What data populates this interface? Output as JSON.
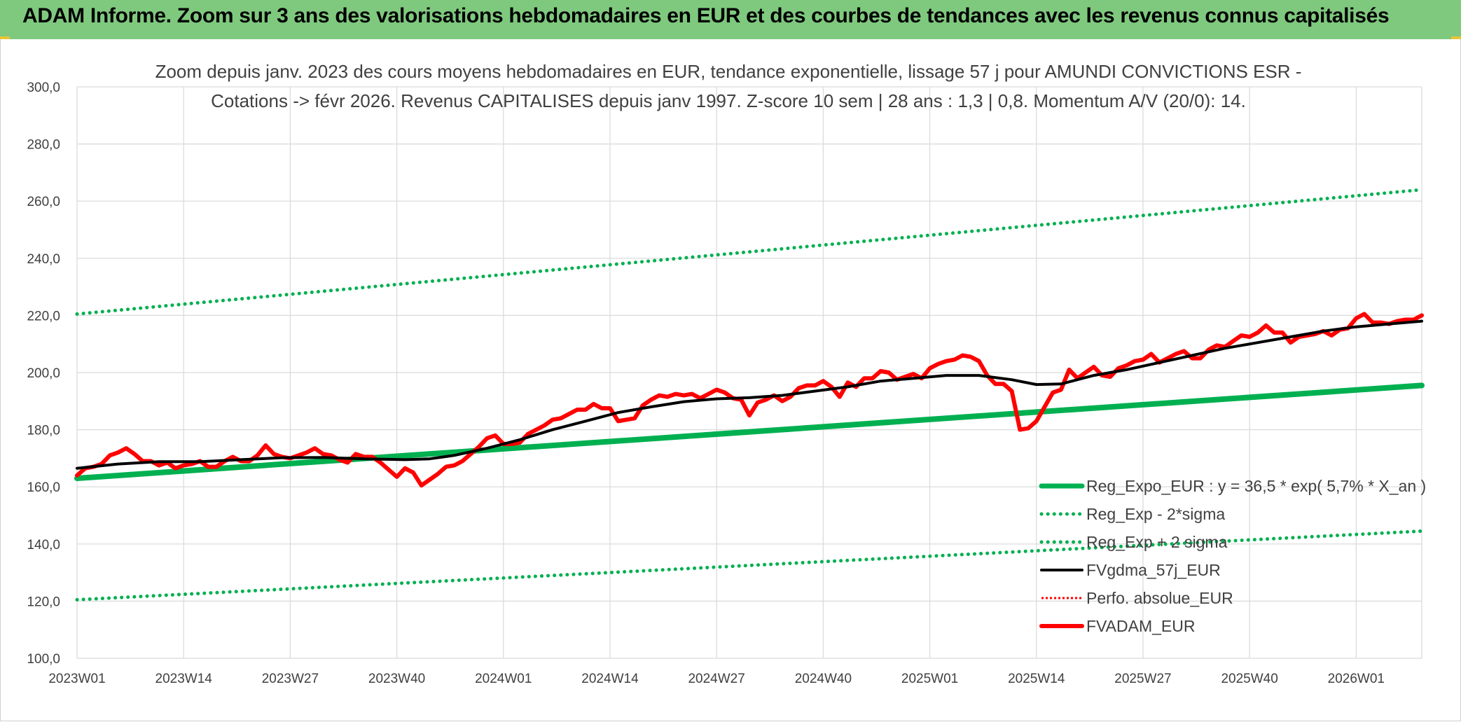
{
  "header": {
    "title": "ADAM Informe. Zoom sur 3 ans des valorisations hebdomadaires en EUR et des courbes de tendances avec les revenus connus capitalisés"
  },
  "chart_data": {
    "type": "line",
    "title_line1": "Zoom depuis janv. 2023 des cours moyens hebdomadaires en EUR, tendance exponentielle, lissage 57 j pour AMUNDI CONVICTIONS ESR -",
    "title_line2": "Cotations -> févr 2026. Revenus CAPITALISES depuis janv 1997. Z-score 10 sem | 28 ans : 1,3 | 0,8. Momentum A/V (20/0): 14.",
    "xlabel": "",
    "ylabel": "",
    "ylim": [
      100,
      300
    ],
    "yticks": [
      "100,0",
      "120,0",
      "140,0",
      "160,0",
      "180,0",
      "200,0",
      "220,0",
      "240,0",
      "260,0",
      "280,0",
      "300,0"
    ],
    "x_tick_labels": [
      "2023W01",
      "2023W14",
      "2023W27",
      "2023W40",
      "2024W01",
      "2024W14",
      "2024W27",
      "2024W40",
      "2025W01",
      "2025W14",
      "2025W27",
      "2025W40",
      "2026W01"
    ],
    "x_tick_weeks": [
      0,
      13,
      26,
      39,
      52,
      65,
      78,
      91,
      104,
      117,
      130,
      143,
      156
    ],
    "week_count": 164,
    "grid": true,
    "legend_position": "bottom-right",
    "colors": {
      "reg_expo": "#00b050",
      "reg_band": "#00b050",
      "fvgdma": "#000000",
      "perfo": "#ff0000",
      "fvadam": "#ff0000"
    },
    "series": [
      {
        "name": "Reg_Expo_EUR : y = 36,5 * exp( 5,7% *  X_an )",
        "key": "reg_expo",
        "style": "thick",
        "points": [
          [
            0,
            163
          ],
          [
            164,
            195.5
          ]
        ]
      },
      {
        "name": "Reg_Exp - 2*sigma",
        "key": "reg_lower",
        "style": "dotted",
        "points": [
          [
            0,
            120.5
          ],
          [
            164,
            144.5
          ]
        ]
      },
      {
        "name": "Reg_Exp + 2 sigma",
        "key": "reg_upper",
        "style": "dotted",
        "points": [
          [
            0,
            220.5
          ],
          [
            164,
            264
          ]
        ]
      },
      {
        "name": "FVgdma_57j_EUR",
        "key": "fvgdma",
        "style": "solid",
        "points": [
          [
            0,
            166.5
          ],
          [
            5,
            168
          ],
          [
            10,
            168.8
          ],
          [
            15,
            168.8
          ],
          [
            20,
            169.5
          ],
          [
            25,
            170.2
          ],
          [
            30,
            170.3
          ],
          [
            35,
            169.8
          ],
          [
            40,
            169.5
          ],
          [
            43,
            169.8
          ],
          [
            46,
            171
          ],
          [
            50,
            173.5
          ],
          [
            54,
            176.5
          ],
          [
            58,
            180
          ],
          [
            62,
            183
          ],
          [
            66,
            186
          ],
          [
            70,
            188
          ],
          [
            74,
            189.8
          ],
          [
            78,
            190.8
          ],
          [
            82,
            191.2
          ],
          [
            86,
            192
          ],
          [
            90,
            193.5
          ],
          [
            94,
            195
          ],
          [
            98,
            197
          ],
          [
            102,
            198
          ],
          [
            106,
            199
          ],
          [
            110,
            199
          ],
          [
            114,
            197.5
          ],
          [
            117,
            195.8
          ],
          [
            120,
            196
          ],
          [
            124,
            199
          ],
          [
            128,
            201
          ],
          [
            132,
            203.5
          ],
          [
            136,
            206
          ],
          [
            140,
            208.5
          ],
          [
            144,
            210.5
          ],
          [
            148,
            212.5
          ],
          [
            152,
            214.5
          ],
          [
            156,
            216
          ],
          [
            160,
            217
          ],
          [
            164,
            218
          ]
        ]
      },
      {
        "name": "Perfo. absolue_EUR",
        "key": "perfo",
        "style": "dotted-thin",
        "points": []
      },
      {
        "name": "FVADAM_EUR",
        "key": "fvadam",
        "style": "thick",
        "points": [
          [
            0,
            164
          ],
          [
            1,
            166.5
          ],
          [
            2,
            167
          ],
          [
            3,
            168
          ],
          [
            4,
            171
          ],
          [
            5,
            172
          ],
          [
            6,
            173.5
          ],
          [
            7,
            171.5
          ],
          [
            8,
            169
          ],
          [
            9,
            169
          ],
          [
            10,
            167.5
          ],
          [
            11,
            168.5
          ],
          [
            12,
            166.5
          ],
          [
            13,
            167.5
          ],
          [
            14,
            168
          ],
          [
            15,
            169
          ],
          [
            16,
            167
          ],
          [
            17,
            167
          ],
          [
            18,
            169
          ],
          [
            19,
            170.5
          ],
          [
            20,
            169
          ],
          [
            21,
            169
          ],
          [
            22,
            171
          ],
          [
            23,
            174.5
          ],
          [
            24,
            171.5
          ],
          [
            25,
            170.5
          ],
          [
            26,
            170
          ],
          [
            27,
            171
          ],
          [
            28,
            172
          ],
          [
            29,
            173.5
          ],
          [
            30,
            171.5
          ],
          [
            31,
            171
          ],
          [
            32,
            169.5
          ],
          [
            33,
            168.5
          ],
          [
            34,
            171.5
          ],
          [
            35,
            170.5
          ],
          [
            36,
            170.5
          ],
          [
            37,
            168.5
          ],
          [
            38,
            166
          ],
          [
            39,
            163.5
          ],
          [
            40,
            166.5
          ],
          [
            41,
            165
          ],
          [
            42,
            160.5
          ],
          [
            43,
            162.5
          ],
          [
            44,
            164.5
          ],
          [
            45,
            167
          ],
          [
            46,
            167.5
          ],
          [
            47,
            169
          ],
          [
            48,
            171.5
          ],
          [
            49,
            174
          ],
          [
            50,
            177
          ],
          [
            51,
            178
          ],
          [
            52,
            175
          ],
          [
            53,
            175
          ],
          [
            54,
            175.5
          ],
          [
            55,
            178.5
          ],
          [
            56,
            180
          ],
          [
            57,
            181.5
          ],
          [
            58,
            183.5
          ],
          [
            59,
            184
          ],
          [
            60,
            185.5
          ],
          [
            61,
            187
          ],
          [
            62,
            187
          ],
          [
            63,
            189
          ],
          [
            64,
            187.5
          ],
          [
            65,
            187.5
          ],
          [
            66,
            183
          ],
          [
            67,
            183.5
          ],
          [
            68,
            184
          ],
          [
            69,
            188.5
          ],
          [
            70,
            190.5
          ],
          [
            71,
            192
          ],
          [
            72,
            191.5
          ],
          [
            73,
            192.5
          ],
          [
            74,
            192
          ],
          [
            75,
            192.5
          ],
          [
            76,
            191
          ],
          [
            77,
            192.5
          ],
          [
            78,
            194
          ],
          [
            79,
            193
          ],
          [
            80,
            191
          ],
          [
            81,
            190.5
          ],
          [
            82,
            185
          ],
          [
            83,
            189.5
          ],
          [
            84,
            190.5
          ],
          [
            85,
            192
          ],
          [
            86,
            190
          ],
          [
            87,
            191.5
          ],
          [
            88,
            194.5
          ],
          [
            89,
            195.5
          ],
          [
            90,
            195.5
          ],
          [
            91,
            197
          ],
          [
            92,
            195
          ],
          [
            93,
            191.5
          ],
          [
            94,
            196.5
          ],
          [
            95,
            195
          ],
          [
            96,
            198
          ],
          [
            97,
            198
          ],
          [
            98,
            200.5
          ],
          [
            99,
            200
          ],
          [
            100,
            197.5
          ],
          [
            101,
            198.5
          ],
          [
            102,
            199.5
          ],
          [
            103,
            198
          ],
          [
            104,
            201.5
          ],
          [
            105,
            203
          ],
          [
            106,
            204
          ],
          [
            107,
            204.5
          ],
          [
            108,
            206
          ],
          [
            109,
            205.5
          ],
          [
            110,
            204
          ],
          [
            111,
            199
          ],
          [
            112,
            196
          ],
          [
            113,
            196
          ],
          [
            114,
            193.5
          ],
          [
            115,
            180
          ],
          [
            116,
            180.5
          ],
          [
            117,
            183
          ],
          [
            118,
            188
          ],
          [
            119,
            193
          ],
          [
            120,
            194
          ],
          [
            121,
            201
          ],
          [
            122,
            198
          ],
          [
            123,
            200
          ],
          [
            124,
            202
          ],
          [
            125,
            199
          ],
          [
            126,
            198.5
          ],
          [
            127,
            201.5
          ],
          [
            128,
            202.5
          ],
          [
            129,
            204
          ],
          [
            130,
            204.5
          ],
          [
            131,
            206.5
          ],
          [
            132,
            203.5
          ],
          [
            133,
            205
          ],
          [
            134,
            206.5
          ],
          [
            135,
            207.5
          ],
          [
            136,
            205
          ],
          [
            137,
            205
          ],
          [
            138,
            208
          ],
          [
            139,
            209.5
          ],
          [
            140,
            209
          ],
          [
            141,
            211
          ],
          [
            142,
            213
          ],
          [
            143,
            212.5
          ],
          [
            144,
            214
          ],
          [
            145,
            216.5
          ],
          [
            146,
            214
          ],
          [
            147,
            214
          ],
          [
            148,
            210.5
          ],
          [
            149,
            212.5
          ],
          [
            150,
            213
          ],
          [
            151,
            213.5
          ],
          [
            152,
            214.5
          ],
          [
            153,
            213
          ],
          [
            154,
            215
          ],
          [
            155,
            215.5
          ],
          [
            156,
            219
          ],
          [
            157,
            220.5
          ],
          [
            158,
            217.5
          ],
          [
            159,
            217.5
          ],
          [
            160,
            217
          ],
          [
            161,
            218
          ],
          [
            162,
            218.5
          ],
          [
            163,
            218.5
          ],
          [
            164,
            220
          ]
        ]
      }
    ]
  }
}
